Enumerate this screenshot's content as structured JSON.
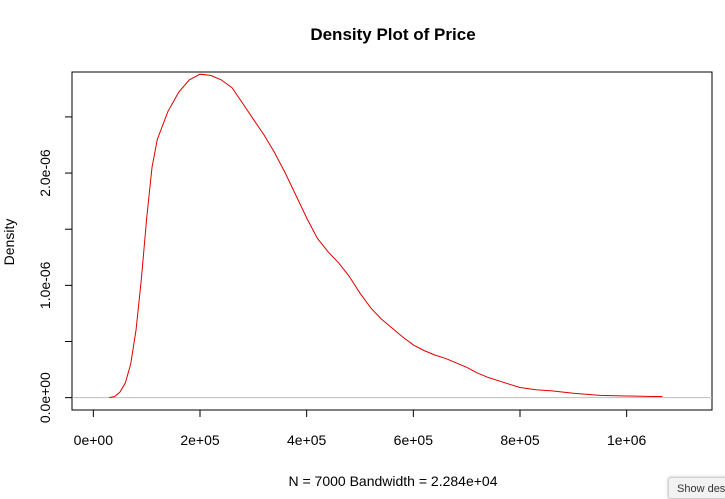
{
  "chart_data": {
    "type": "line",
    "title": "Density Plot of Price",
    "xlabel": "N = 7000   Bandwidth = 2.284e+04",
    "ylabel": "Density",
    "xlim": [
      -40000,
      1160000
    ],
    "ylim": [
      -1.1e-07,
      2.9e-06
    ],
    "x_ticks": [
      0,
      200000,
      400000,
      600000,
      800000,
      1000000
    ],
    "x_tick_labels": [
      "0e+00",
      "2e+05",
      "4e+05",
      "6e+05",
      "8e+05",
      "1e+06"
    ],
    "y_ticks": [
      0,
      5e-07,
      1e-06,
      1.5e-06,
      2e-06,
      2.5e-06
    ],
    "y_tick_labels": [
      "0.0e+00",
      "",
      "1.0e-06",
      "",
      "2.0e-06",
      ""
    ],
    "baseline": 0,
    "baseline_color": "#bebebe",
    "line_color": "#e00000",
    "series": [
      {
        "x": [
          30000,
          40000,
          50000,
          60000,
          70000,
          80000,
          90000,
          100000,
          110000,
          120000,
          140000,
          160000,
          180000,
          200000,
          220000,
          240000,
          260000,
          280000,
          300000,
          320000,
          340000,
          360000,
          380000,
          400000,
          420000,
          440000,
          460000,
          480000,
          500000,
          520000,
          540000,
          560000,
          580000,
          600000,
          620000,
          640000,
          660000,
          680000,
          700000,
          720000,
          740000,
          760000,
          780000,
          800000,
          830000,
          860000,
          900000,
          950000,
          1000000,
          1050000,
          1067000
        ],
        "y": [
          0,
          1e-08,
          5e-08,
          1.3e-07,
          3e-07,
          6e-07,
          1.05e-06,
          1.6e-06,
          2.05e-06,
          2.3e-06,
          2.55e-06,
          2.72e-06,
          2.83e-06,
          2.88e-06,
          2.87e-06,
          2.83e-06,
          2.76e-06,
          2.62e-06,
          2.48e-06,
          2.34e-06,
          2.18e-06,
          2e-06,
          1.8e-06,
          1.6e-06,
          1.42e-06,
          1.3e-06,
          1.2e-06,
          1.08e-06,
          9.3e-07,
          8e-07,
          7e-07,
          6.2e-07,
          5.4e-07,
          4.7e-07,
          4.2e-07,
          3.8e-07,
          3.5e-07,
          3.1e-07,
          2.7e-07,
          2.2e-07,
          1.8e-07,
          1.5e-07,
          1.2e-07,
          9e-08,
          7e-08,
          6e-08,
          4e-08,
          2e-08,
          1.5e-08,
          1e-08,
          1e-08
        ]
      }
    ]
  },
  "overlay": {
    "button_label": "Show des"
  }
}
